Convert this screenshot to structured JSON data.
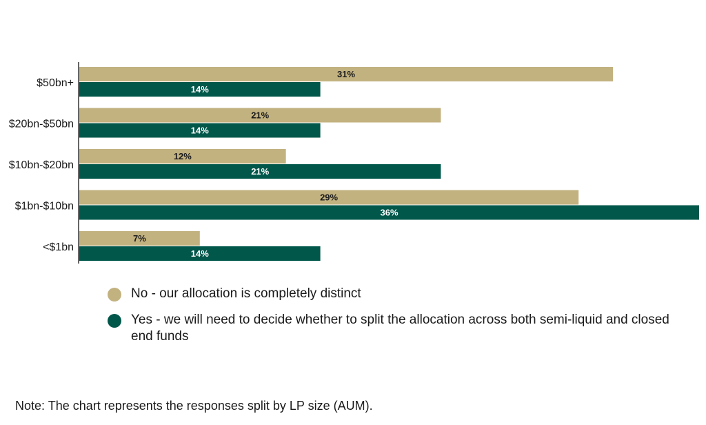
{
  "chart_data": {
    "type": "bar",
    "orientation": "horizontal",
    "categories": [
      "$50bn+",
      "$20bn-$50bn",
      "$10bn-$20bn",
      "$1bn-$10bn",
      "<$1bn"
    ],
    "series": [
      {
        "name": "No - our allocation is completely distinct",
        "color": "#c2b280",
        "label_color": "#1a1a1a",
        "values": [
          31,
          21,
          12,
          29,
          7
        ]
      },
      {
        "name": "Yes - we will need to decide whether to split the allocation across both semi-liquid and closed end funds",
        "color": "#00574a",
        "label_color": "#ffffff",
        "values": [
          14,
          14,
          21,
          36,
          14
        ]
      }
    ],
    "value_suffix": "%",
    "xlim": [
      0,
      36
    ],
    "legend_position": "bottom",
    "grid": false
  },
  "note": "Note: The chart represents the responses split by LP size (AUM)."
}
